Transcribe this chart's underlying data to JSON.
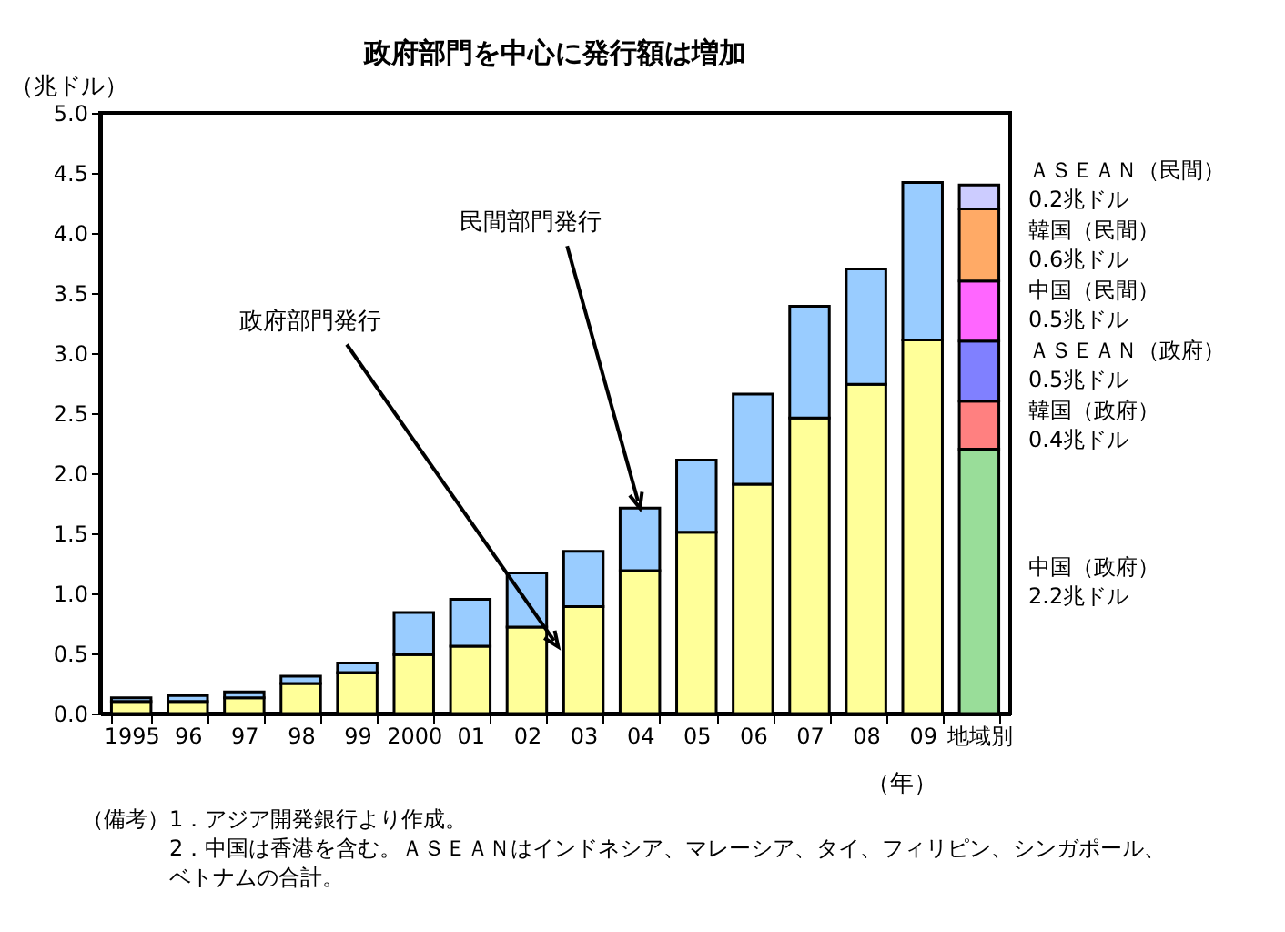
{
  "chart_data": {
    "type": "bar",
    "stacked": true,
    "title": "政府部門を中心に発行額は増加",
    "ylabel": "（兆ドル）",
    "xlabel": "（年）",
    "categories": [
      "1995",
      "96",
      "97",
      "98",
      "99",
      "2000",
      "01",
      "02",
      "03",
      "04",
      "05",
      "06",
      "07",
      "08",
      "09",
      "地域別"
    ],
    "ylim": [
      0,
      5
    ],
    "yticks": [
      {
        "value": 0,
        "label": "0.0"
      },
      0.5,
      {
        "value": 1,
        "label": "1.0"
      },
      1.5,
      {
        "value": 2,
        "label": "2.0"
      },
      2.5,
      {
        "value": 3,
        "label": "3.0"
      },
      3.5,
      {
        "value": 4,
        "label": "4.0"
      },
      4.5,
      {
        "value": 5,
        "label": "5.0"
      }
    ],
    "grid": false,
    "legend": false,
    "series": [
      {
        "name": "政府部門発行",
        "color": "#ffff99",
        "values": [
          0.1,
          0.1,
          0.13,
          0.25,
          0.34,
          0.49,
          0.56,
          0.72,
          0.89,
          1.19,
          1.51,
          1.91,
          2.46,
          2.74,
          3.11,
          null
        ]
      },
      {
        "name": "民間部門発行",
        "color": "#99ccff",
        "values": [
          0.03,
          0.05,
          0.05,
          0.06,
          0.08,
          0.35,
          0.39,
          0.45,
          0.46,
          0.52,
          0.6,
          0.75,
          0.93,
          0.96,
          1.31,
          null
        ]
      },
      {
        "name": "中国（政府）",
        "color": "#99dd99",
        "values": [
          null,
          null,
          null,
          null,
          null,
          null,
          null,
          null,
          null,
          null,
          null,
          null,
          null,
          null,
          null,
          2.2
        ]
      },
      {
        "name": "韓国（政府）",
        "color": "#ff8080",
        "values": [
          null,
          null,
          null,
          null,
          null,
          null,
          null,
          null,
          null,
          null,
          null,
          null,
          null,
          null,
          null,
          0.4
        ]
      },
      {
        "name": "ＡＳＥＡＮ（政府）",
        "color": "#8080ff",
        "values": [
          null,
          null,
          null,
          null,
          null,
          null,
          null,
          null,
          null,
          null,
          null,
          null,
          null,
          null,
          null,
          0.5
        ]
      },
      {
        "name": "中国（民間）",
        "color": "#ff66ff",
        "values": [
          null,
          null,
          null,
          null,
          null,
          null,
          null,
          null,
          null,
          null,
          null,
          null,
          null,
          null,
          null,
          0.5
        ]
      },
      {
        "name": "韓国（民間）",
        "color": "#ffaa66",
        "values": [
          null,
          null,
          null,
          null,
          null,
          null,
          null,
          null,
          null,
          null,
          null,
          null,
          null,
          null,
          null,
          0.6
        ]
      },
      {
        "name": "ＡＳＥＡＮ（民間）",
        "color": "#ccccff",
        "values": [
          null,
          null,
          null,
          null,
          null,
          null,
          null,
          null,
          null,
          null,
          null,
          null,
          null,
          null,
          null,
          0.2
        ]
      }
    ],
    "annotations": [
      "2.2兆ドル",
      "0.4兆ドル",
      "0.5兆ドル",
      "0.5兆ドル",
      "0.6兆ドル",
      "0.2兆ドル",
      "（備考）1．アジア開発銀行より作成。",
      "2．中国は香港を含む。ＡＳＥＡＮはインドネシア、マレーシア、タイ、フィリピン、シンガポール、ベトナムの合計。"
    ]
  }
}
